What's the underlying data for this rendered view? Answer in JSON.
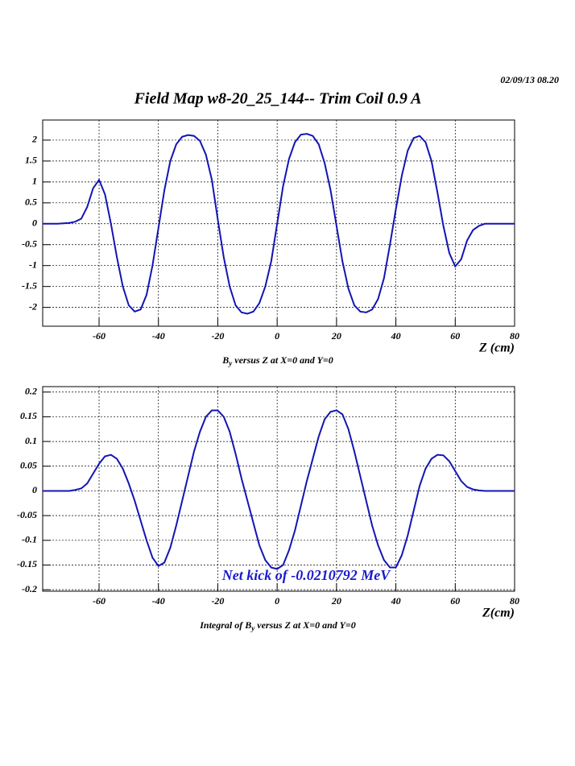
{
  "header": {
    "title": "Field Map w8-20_25_144-- Trim Coil 0.9 A",
    "date": "02/09/13   08.20"
  },
  "chart_data": [
    {
      "type": "line",
      "x_title": "Z (cm)",
      "caption": [
        "B",
        "y",
        " versus Z at X=0 and Y=0"
      ],
      "xlim": [
        -79,
        80
      ],
      "ylim": [
        -2.45,
        2.48
      ],
      "xticks": [
        -60,
        -40,
        -20,
        0,
        20,
        40,
        60,
        80
      ],
      "yticks": [
        -2,
        -1.5,
        -1,
        -0.5,
        0,
        0.5,
        1,
        1.5,
        2
      ],
      "grid": true,
      "x": [
        -79,
        -74,
        -70,
        -68,
        -66,
        -64,
        -62,
        -60,
        -58,
        -56,
        -54,
        -52,
        -50,
        -48,
        -46,
        -44,
        -42,
        -40,
        -38,
        -36,
        -34,
        -32,
        -30,
        -28,
        -26,
        -24,
        -22,
        -20,
        -18,
        -16,
        -14,
        -12,
        -10,
        -8,
        -6,
        -4,
        -2,
        0,
        2,
        4,
        6,
        8,
        10,
        12,
        14,
        16,
        18,
        20,
        22,
        24,
        26,
        28,
        30,
        32,
        34,
        36,
        38,
        40,
        42,
        44,
        46,
        48,
        50,
        52,
        54,
        56,
        58,
        60,
        62,
        64,
        66,
        68,
        70,
        74,
        80
      ],
      "series": [
        {
          "color": "#1414b4",
          "values": [
            0,
            0,
            0.02,
            0.05,
            0.12,
            0.4,
            0.85,
            1.05,
            0.7,
            0,
            -0.8,
            -1.5,
            -1.95,
            -2.1,
            -2.05,
            -1.7,
            -1.0,
            -0.1,
            0.8,
            1.5,
            1.9,
            2.08,
            2.12,
            2.1,
            1.98,
            1.65,
            1.05,
            0.1,
            -0.8,
            -1.5,
            -1.95,
            -2.12,
            -2.15,
            -2.1,
            -1.9,
            -1.5,
            -0.9,
            0,
            0.9,
            1.55,
            1.95,
            2.13,
            2.15,
            2.1,
            1.9,
            1.45,
            0.8,
            -0.05,
            -0.9,
            -1.55,
            -1.95,
            -2.1,
            -2.12,
            -2.05,
            -1.8,
            -1.3,
            -0.5,
            0.35,
            1.15,
            1.75,
            2.05,
            2.1,
            1.95,
            1.5,
            0.75,
            -0.05,
            -0.7,
            -1.02,
            -0.85,
            -0.4,
            -0.15,
            -0.05,
            0,
            0,
            0
          ]
        }
      ]
    },
    {
      "type": "line",
      "x_title": "Z(cm)",
      "caption": [
        "Integral of B",
        "y",
        " versus Z at X=0 and Y=0"
      ],
      "annotation": "Net kick of -0.0210792 MeV",
      "annotation_color": "#1a1acc",
      "xlim": [
        -79,
        80
      ],
      "ylim": [
        -0.203,
        0.211
      ],
      "xticks": [
        -60,
        -40,
        -20,
        0,
        20,
        40,
        60,
        80
      ],
      "yticks": [
        -0.2,
        -0.15,
        -0.1,
        -0.05,
        0,
        0.05,
        0.1,
        0.15,
        0.2
      ],
      "grid": true,
      "x": [
        -79,
        -74,
        -70,
        -68,
        -66,
        -64,
        -62,
        -60,
        -58,
        -56,
        -54,
        -52,
        -50,
        -48,
        -46,
        -44,
        -42,
        -40,
        -38,
        -36,
        -34,
        -32,
        -30,
        -28,
        -26,
        -24,
        -22,
        -20,
        -18,
        -16,
        -14,
        -12,
        -10,
        -8,
        -6,
        -4,
        -2,
        0,
        2,
        4,
        6,
        8,
        10,
        12,
        14,
        16,
        18,
        20,
        22,
        24,
        26,
        28,
        30,
        32,
        34,
        36,
        38,
        40,
        42,
        44,
        46,
        48,
        50,
        52,
        54,
        56,
        58,
        60,
        62,
        64,
        66,
        68,
        70,
        74,
        80
      ],
      "series": [
        {
          "color": "#1414b4",
          "values": [
            0,
            0,
            0,
            0.002,
            0.005,
            0.015,
            0.035,
            0.055,
            0.07,
            0.073,
            0.065,
            0.045,
            0.015,
            -0.02,
            -0.06,
            -0.1,
            -0.135,
            -0.152,
            -0.145,
            -0.115,
            -0.07,
            -0.02,
            0.03,
            0.08,
            0.12,
            0.15,
            0.163,
            0.163,
            0.15,
            0.12,
            0.075,
            0.025,
            -0.02,
            -0.065,
            -0.11,
            -0.14,
            -0.155,
            -0.158,
            -0.15,
            -0.12,
            -0.08,
            -0.03,
            0.02,
            0.065,
            0.11,
            0.145,
            0.16,
            0.163,
            0.155,
            0.125,
            0.08,
            0.03,
            -0.02,
            -0.07,
            -0.11,
            -0.14,
            -0.155,
            -0.155,
            -0.13,
            -0.09,
            -0.04,
            0.01,
            0.045,
            0.065,
            0.073,
            0.072,
            0.06,
            0.04,
            0.02,
            0.008,
            0.003,
            0.001,
            0,
            0,
            0
          ]
        }
      ]
    }
  ]
}
